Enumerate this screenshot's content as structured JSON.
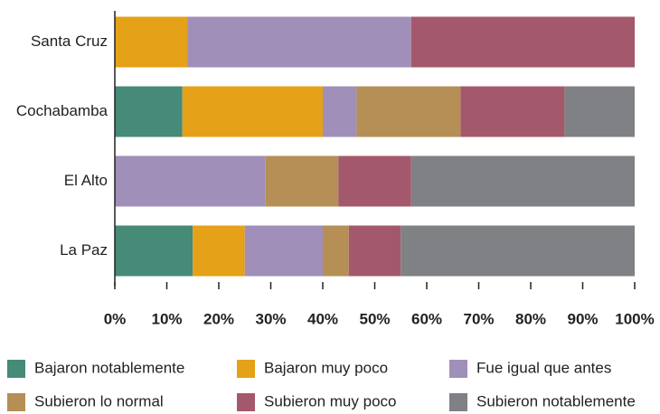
{
  "chart_data": {
    "type": "stacked-bar-horizontal",
    "categories": [
      "Santa Cruz",
      "Cochabamba",
      "El Alto",
      "La Paz"
    ],
    "series": [
      {
        "name": "Bajaron notablemente",
        "color": "#468a78",
        "values": [
          0,
          13,
          0,
          15
        ]
      },
      {
        "name": "Bajaron muy poco",
        "color": "#e5a117",
        "values": [
          14,
          27,
          0,
          10
        ]
      },
      {
        "name": "Fue igual que antes",
        "color": "#a08fb8",
        "values": [
          43,
          6.5,
          29,
          15
        ]
      },
      {
        "name": "Subieron lo normal",
        "color": "#b58f55",
        "values": [
          0,
          20,
          14,
          5
        ]
      },
      {
        "name": "Subieron muy poco",
        "color": "#a3596b",
        "values": [
          43,
          20,
          14,
          10
        ]
      },
      {
        "name": "Subieron notablemente",
        "color": "#808184",
        "values": [
          0,
          13.5,
          43,
          45
        ]
      }
    ],
    "xlim": [
      0,
      100
    ],
    "xticks": [
      {
        "value": 0,
        "label": "0%"
      },
      {
        "value": 10,
        "label": "10%"
      },
      {
        "value": 20,
        "label": "20%"
      },
      {
        "value": 30,
        "label": "30%"
      },
      {
        "value": 40,
        "label": "40%"
      },
      {
        "value": 50,
        "label": "50%"
      },
      {
        "value": 60,
        "label": "60%"
      },
      {
        "value": 70,
        "label": "70%"
      },
      {
        "value": 80,
        "label": "80%"
      },
      {
        "value": 90,
        "label": "90%"
      },
      {
        "value": 100,
        "label": "100%"
      }
    ],
    "legend": "bottom"
  }
}
